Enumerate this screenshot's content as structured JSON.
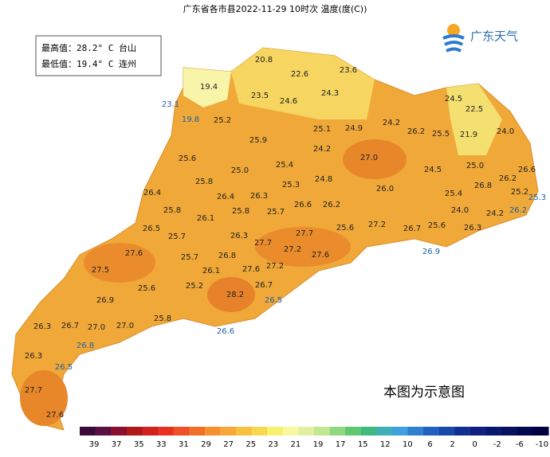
{
  "header": {
    "title": "广东省各市县2022-11-29 10时次 温度(度(C))"
  },
  "stats": [
    "最高值：28.2° C 台山",
    "最低值：19.4° C 连州"
  ],
  "brand": "广东天气",
  "note": "本图为示意图",
  "labels": [
    "20.8",
    "22.6",
    "23.6",
    "19.4",
    "23.5",
    "24.6",
    "24.3",
    "24.5",
    "22.5",
    "23.1",
    "19.8",
    "25.2",
    "25.1",
    "24.9",
    "24.2",
    "26.2",
    "25.5",
    "21.9",
    "24.0",
    "25.9",
    "24.2",
    "27.0",
    "25.6",
    "25.4",
    "25.0",
    "24.5",
    "25.0",
    "26.6",
    "25.8",
    "25.3",
    "24.8",
    "26.2",
    "26.8",
    "26.4",
    "26.0",
    "25.4",
    "25.2",
    "25.3",
    "26.4",
    "26.3",
    "26.6",
    "26.2",
    "25.8",
    "26.1",
    "25.8",
    "25.7",
    "24.0",
    "24.2",
    "26.2",
    "26.5",
    "27.2",
    "26.7",
    "25.6",
    "26.3",
    "25.6",
    "25.7",
    "26.3",
    "27.7",
    "27.7",
    "27.6",
    "25.7",
    "26.8",
    "27.2",
    "27.6",
    "26.9",
    "27.5",
    "26.1",
    "27.6",
    "27.2",
    "25.6",
    "25.2",
    "26.7",
    "28.2",
    "26.5",
    "26.9",
    "25.8",
    "26.3",
    "26.7",
    "27.0",
    "27.0",
    "26.6",
    "26.8",
    "26.3",
    "26.5",
    "27.7",
    "27.6"
  ],
  "legend": [
    "39",
    "37",
    "35",
    "33",
    "31",
    "29",
    "27",
    "25",
    "23",
    "21",
    "19",
    "17",
    "15",
    "12",
    "10",
    "6",
    "2",
    "0",
    "-2",
    "-6",
    "-10"
  ]
}
